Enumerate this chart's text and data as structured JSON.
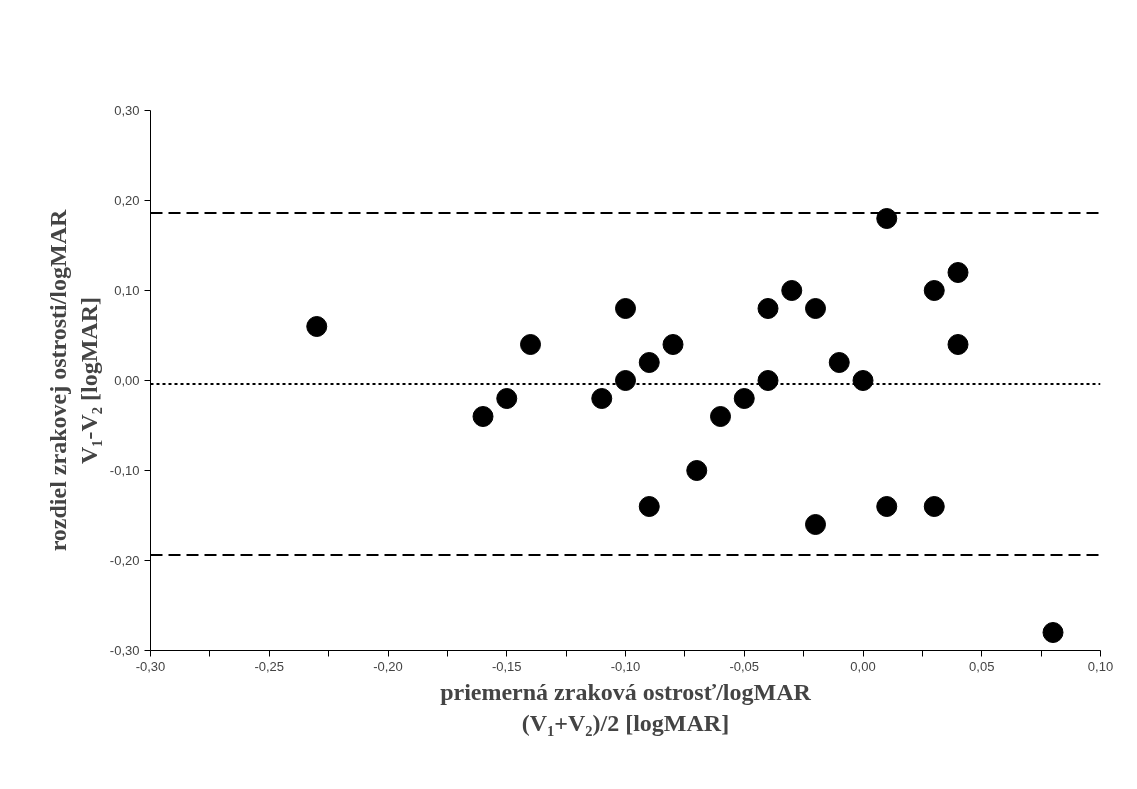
{
  "chart_data": {
    "type": "scatter",
    "xlabel": "priemerná zraková ostrosť/logMAR\n(V₁+V₂)/2 [logMAR]",
    "ylabel": "rozdiel zrakovej ostrosti/logMAR\nV₁-V₂ [logMAR]",
    "x": [
      -0.23,
      -0.16,
      -0.15,
      -0.14,
      -0.11,
      -0.1,
      -0.1,
      -0.09,
      -0.09,
      -0.08,
      -0.07,
      -0.06,
      -0.05,
      -0.04,
      -0.04,
      -0.03,
      -0.02,
      -0.02,
      -0.01,
      0.0,
      0.01,
      0.01,
      0.03,
      0.03,
      0.04,
      0.04,
      0.08
    ],
    "values": [
      0.06,
      -0.04,
      -0.02,
      0.04,
      -0.02,
      0.08,
      0.0,
      0.02,
      -0.14,
      0.04,
      -0.1,
      -0.04,
      -0.02,
      0.08,
      0.0,
      0.1,
      0.08,
      -0.16,
      0.02,
      0.0,
      0.18,
      -0.14,
      0.1,
      -0.14,
      0.12,
      0.04,
      -0.28
    ],
    "color": "#000000",
    "marker": "circle",
    "grid": false,
    "xlim": [
      -0.3,
      0.1
    ],
    "ylim": [
      -0.3,
      0.3
    ],
    "xticks": [
      {
        "value": -0.3,
        "label": "-0,30"
      },
      {
        "value": -0.275,
        "label": null
      },
      {
        "value": -0.25,
        "label": "-0,25"
      },
      {
        "value": -0.225,
        "label": null
      },
      {
        "value": -0.2,
        "label": "-0,20"
      },
      {
        "value": -0.175,
        "label": null
      },
      {
        "value": -0.15,
        "label": "-0,15"
      },
      {
        "value": -0.125,
        "label": null
      },
      {
        "value": -0.1,
        "label": "-0,10"
      },
      {
        "value": -0.075,
        "label": null
      },
      {
        "value": -0.05,
        "label": "-0,05"
      },
      {
        "value": -0.025,
        "label": null
      },
      {
        "value": 0.0,
        "label": "0,00"
      },
      {
        "value": 0.025,
        "label": null
      },
      {
        "value": 0.05,
        "label": "0,05"
      },
      {
        "value": 0.075,
        "label": null
      },
      {
        "value": 0.1,
        "label": "0,10"
      }
    ],
    "yticks": [
      {
        "value": -0.3,
        "label": "-0,30"
      },
      {
        "value": -0.2,
        "label": "-0,20"
      },
      {
        "value": -0.1,
        "label": "-0,10"
      },
      {
        "value": 0.0,
        "label": "0,00"
      },
      {
        "value": 0.1,
        "label": "0,10"
      },
      {
        "value": 0.2,
        "label": "0,20"
      },
      {
        "value": 0.3,
        "label": "0,30"
      }
    ],
    "ref_lines": [
      {
        "axis": "y",
        "value": 0.186,
        "color": "#000000",
        "line_style": "dashed"
      },
      {
        "axis": "y",
        "value": -0.004,
        "color": "#000000",
        "line_style": "dotted"
      },
      {
        "axis": "y",
        "value": -0.194,
        "color": "#000000",
        "line_style": "dashed"
      }
    ]
  }
}
